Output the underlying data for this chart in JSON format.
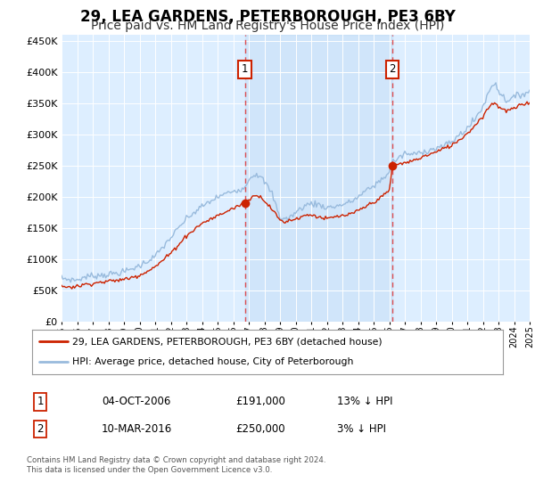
{
  "title": "29, LEA GARDENS, PETERBOROUGH, PE3 6BY",
  "subtitle": "Price paid vs. HM Land Registry's House Price Index (HPI)",
  "title_fontsize": 12,
  "subtitle_fontsize": 10,
  "background_color": "#ffffff",
  "plot_bg_color": "#ddeeff",
  "grid_color": "#ffffff",
  "ylim": [
    0,
    460000
  ],
  "yticks": [
    0,
    50000,
    100000,
    150000,
    200000,
    250000,
    300000,
    350000,
    400000,
    450000
  ],
  "hpi_line_color": "#99bbdd",
  "price_line_color": "#cc2200",
  "sale1_price": 191000,
  "sale1_x": 2006.75,
  "sale2_price": 250000,
  "sale2_x": 2016.2,
  "vline_color": "#dd3333",
  "legend_label1": "29, LEA GARDENS, PETERBOROUGH, PE3 6BY (detached house)",
  "legend_label2": "HPI: Average price, detached house, City of Peterborough",
  "footer_text": "Contains HM Land Registry data © Crown copyright and database right 2024.\nThis data is licensed under the Open Government Licence v3.0.",
  "table_rows": [
    {
      "num": "1",
      "date": "04-OCT-2006",
      "price": "£191,000",
      "hpi": "13% ↓ HPI"
    },
    {
      "num": "2",
      "date": "10-MAR-2016",
      "price": "£250,000",
      "hpi": "3% ↓ HPI"
    }
  ],
  "hpi_key_points": [
    [
      1995.0,
      70000
    ],
    [
      1995.5,
      68000
    ],
    [
      1996.0,
      67000
    ],
    [
      1996.5,
      72000
    ],
    [
      1997.0,
      74000
    ],
    [
      1998.0,
      76000
    ],
    [
      1999.0,
      80000
    ],
    [
      2000.0,
      90000
    ],
    [
      2001.0,
      105000
    ],
    [
      2002.0,
      135000
    ],
    [
      2003.0,
      165000
    ],
    [
      2004.0,
      185000
    ],
    [
      2005.0,
      200000
    ],
    [
      2006.0,
      210000
    ],
    [
      2006.75,
      215000
    ],
    [
      2007.0,
      230000
    ],
    [
      2007.5,
      238000
    ],
    [
      2008.0,
      225000
    ],
    [
      2008.5,
      205000
    ],
    [
      2009.0,
      167000
    ],
    [
      2009.5,
      165000
    ],
    [
      2010.0,
      175000
    ],
    [
      2010.5,
      185000
    ],
    [
      2011.0,
      190000
    ],
    [
      2011.5,
      188000
    ],
    [
      2012.0,
      183000
    ],
    [
      2012.5,
      185000
    ],
    [
      2013.0,
      188000
    ],
    [
      2013.5,
      192000
    ],
    [
      2014.0,
      200000
    ],
    [
      2014.5,
      210000
    ],
    [
      2015.0,
      218000
    ],
    [
      2015.5,
      228000
    ],
    [
      2016.0,
      240000
    ],
    [
      2016.2,
      258000
    ],
    [
      2016.5,
      260000
    ],
    [
      2017.0,
      270000
    ],
    [
      2017.5,
      268000
    ],
    [
      2018.0,
      272000
    ],
    [
      2018.5,
      275000
    ],
    [
      2019.0,
      278000
    ],
    [
      2019.5,
      282000
    ],
    [
      2020.0,
      288000
    ],
    [
      2020.5,
      300000
    ],
    [
      2021.0,
      310000
    ],
    [
      2021.5,
      325000
    ],
    [
      2022.0,
      345000
    ],
    [
      2022.5,
      375000
    ],
    [
      2022.8,
      385000
    ],
    [
      2023.0,
      370000
    ],
    [
      2023.5,
      355000
    ],
    [
      2024.0,
      360000
    ],
    [
      2024.5,
      365000
    ],
    [
      2025.0,
      370000
    ]
  ],
  "price_key_points": [
    [
      1995.0,
      57000
    ],
    [
      1995.5,
      56000
    ],
    [
      1996.0,
      57000
    ],
    [
      1996.5,
      60000
    ],
    [
      1997.0,
      62000
    ],
    [
      1998.0,
      65000
    ],
    [
      1999.0,
      68000
    ],
    [
      2000.0,
      75000
    ],
    [
      2001.0,
      88000
    ],
    [
      2002.0,
      110000
    ],
    [
      2003.0,
      138000
    ],
    [
      2004.0,
      158000
    ],
    [
      2005.0,
      170000
    ],
    [
      2006.0,
      182000
    ],
    [
      2006.75,
      191000
    ],
    [
      2007.0,
      195000
    ],
    [
      2007.5,
      205000
    ],
    [
      2008.0,
      195000
    ],
    [
      2008.5,
      180000
    ],
    [
      2009.0,
      163000
    ],
    [
      2009.3,
      160000
    ],
    [
      2009.5,
      162000
    ],
    [
      2010.0,
      165000
    ],
    [
      2010.5,
      170000
    ],
    [
      2011.0,
      172000
    ],
    [
      2011.5,
      168000
    ],
    [
      2012.0,
      165000
    ],
    [
      2012.5,
      168000
    ],
    [
      2013.0,
      170000
    ],
    [
      2013.5,
      172000
    ],
    [
      2014.0,
      178000
    ],
    [
      2014.5,
      185000
    ],
    [
      2015.0,
      192000
    ],
    [
      2015.5,
      200000
    ],
    [
      2016.0,
      210000
    ],
    [
      2016.2,
      250000
    ],
    [
      2016.5,
      252000
    ],
    [
      2017.0,
      255000
    ],
    [
      2017.5,
      258000
    ],
    [
      2018.0,
      263000
    ],
    [
      2018.5,
      268000
    ],
    [
      2019.0,
      272000
    ],
    [
      2019.5,
      278000
    ],
    [
      2020.0,
      283000
    ],
    [
      2020.5,
      292000
    ],
    [
      2021.0,
      302000
    ],
    [
      2021.5,
      315000
    ],
    [
      2022.0,
      330000
    ],
    [
      2022.5,
      348000
    ],
    [
      2022.8,
      352000
    ],
    [
      2023.0,
      345000
    ],
    [
      2023.5,
      338000
    ],
    [
      2024.0,
      342000
    ],
    [
      2024.5,
      348000
    ],
    [
      2025.0,
      352000
    ]
  ]
}
